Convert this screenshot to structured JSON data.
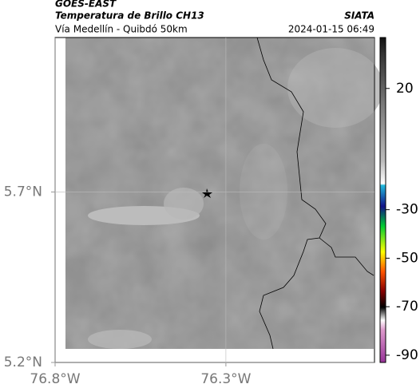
{
  "header": {
    "title": "GOES-EAST",
    "product": "Temperatura de Brillo CH13",
    "region": "Vía Medellín - Quibdó 50km",
    "source": "SIATA",
    "datetime": "2024-01-15 06:49"
  },
  "map": {
    "lonlim": [
      -76.8,
      -75.865
    ],
    "latlim": [
      5.2,
      6.153
    ],
    "xticks": [
      {
        "value": -76.8,
        "label": "76.8°W"
      },
      {
        "value": -76.3,
        "label": "76.3°W"
      }
    ],
    "yticks": [
      {
        "value": 5.2,
        "label": "5.2°N"
      },
      {
        "value": 5.7,
        "label": "5.7°N"
      }
    ]
  },
  "colorbar": {
    "lim": [
      -93,
      41
    ],
    "ticks": [
      20,
      -30,
      -50,
      -70,
      -90
    ]
  }
}
